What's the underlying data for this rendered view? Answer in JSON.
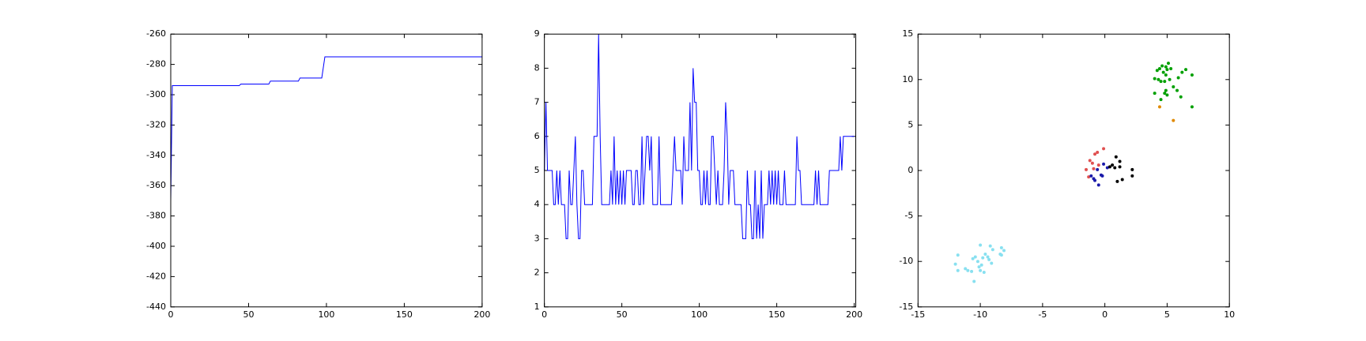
{
  "chart_data": [
    {
      "type": "line",
      "color": "#0000ff",
      "x": [
        0,
        1,
        44,
        45,
        63,
        64,
        82,
        83,
        97,
        99,
        200
      ],
      "values": [
        -370,
        -294,
        -294,
        -293,
        -293,
        -291,
        -291,
        -289,
        -289,
        -275,
        -275
      ],
      "xlim": [
        0,
        200
      ],
      "xticks": [
        0,
        50,
        100,
        150,
        200
      ],
      "ylim": [
        -440,
        -260
      ],
      "yticks": [
        -440,
        -420,
        -400,
        -380,
        -360,
        -340,
        -320,
        -300,
        -280,
        -260
      ]
    },
    {
      "type": "line",
      "color": "#0000ff",
      "x": [
        0,
        1,
        2,
        3,
        4,
        5,
        6,
        7,
        8,
        9,
        10,
        11,
        12,
        13,
        14,
        15,
        16,
        17,
        18,
        19,
        20,
        21,
        22,
        23,
        24,
        25,
        26,
        27,
        28,
        29,
        30,
        31,
        32,
        33,
        34,
        35,
        36,
        37,
        38,
        39,
        40,
        41,
        42,
        43,
        44,
        45,
        46,
        47,
        48,
        49,
        50,
        51,
        52,
        53,
        54,
        55,
        56,
        57,
        58,
        59,
        60,
        61,
        62,
        63,
        64,
        65,
        66,
        67,
        68,
        69,
        70,
        71,
        72,
        73,
        74,
        75,
        76,
        77,
        78,
        79,
        80,
        81,
        82,
        83,
        84,
        85,
        86,
        87,
        88,
        89,
        90,
        91,
        92,
        93,
        94,
        95,
        96,
        97,
        98,
        99,
        100,
        101,
        102,
        103,
        104,
        105,
        106,
        107,
        108,
        109,
        110,
        111,
        112,
        113,
        114,
        115,
        116,
        117,
        118,
        119,
        120,
        121,
        122,
        123,
        124,
        125,
        126,
        127,
        128,
        129,
        130,
        131,
        132,
        133,
        134,
        135,
        136,
        137,
        138,
        139,
        140,
        141,
        142,
        143,
        144,
        145,
        146,
        147,
        148,
        149,
        150,
        151,
        152,
        153,
        154,
        155,
        156,
        157,
        158,
        159,
        160,
        161,
        162,
        163,
        164,
        165,
        166,
        167,
        168,
        169,
        170,
        171,
        172,
        173,
        174,
        175,
        176,
        177,
        178,
        179,
        180,
        181,
        182,
        183,
        184,
        185,
        186,
        187,
        188,
        189,
        190,
        191,
        192,
        193,
        194,
        195,
        196,
        197,
        198,
        199,
        200
      ],
      "values": [
        5,
        7,
        5,
        5,
        5,
        5,
        4,
        4,
        5,
        4,
        5,
        4,
        4,
        4,
        3,
        3,
        5,
        4,
        4,
        5,
        6,
        4,
        3,
        3,
        5,
        5,
        4,
        4,
        4,
        4,
        4,
        4,
        6,
        6,
        6,
        9,
        6,
        4,
        4,
        4,
        4,
        4,
        4,
        5,
        4,
        6,
        4,
        5,
        4,
        5,
        4,
        5,
        4,
        5,
        5,
        5,
        5,
        4,
        4,
        5,
        5,
        4,
        4,
        6,
        4,
        5,
        6,
        6,
        5,
        6,
        4,
        4,
        4,
        4,
        6,
        4,
        4,
        4,
        4,
        4,
        4,
        4,
        4,
        5,
        6,
        5,
        5,
        5,
        5,
        4,
        6,
        5,
        5,
        5,
        7,
        5,
        8,
        7,
        7,
        5,
        5,
        4,
        4,
        5,
        4,
        5,
        4,
        4,
        6,
        6,
        5,
        4,
        5,
        4,
        4,
        4,
        5,
        7,
        6,
        4,
        5,
        5,
        5,
        4,
        4,
        4,
        4,
        4,
        3,
        3,
        3,
        5,
        4,
        4,
        3,
        3,
        5,
        3,
        4,
        3,
        5,
        3,
        4,
        4,
        4,
        5,
        4,
        5,
        4,
        5,
        4,
        5,
        4,
        4,
        4,
        5,
        4,
        4,
        4,
        4,
        4,
        4,
        4,
        6,
        5,
        5,
        4,
        4,
        4,
        4,
        4,
        4,
        4,
        4,
        4,
        5,
        4,
        5,
        4,
        4,
        4,
        4,
        4,
        4,
        5,
        5,
        5,
        5,
        5,
        5,
        5,
        6,
        5,
        6,
        6,
        6,
        6,
        6,
        6,
        6,
        6
      ],
      "xlim": [
        0,
        201
      ],
      "xticks": [
        0,
        50,
        100,
        150,
        200
      ],
      "ylim": [
        1,
        9
      ],
      "yticks": [
        1,
        2,
        3,
        4,
        5,
        6,
        7,
        8,
        9
      ]
    },
    {
      "type": "scatter",
      "series": [
        {
          "color": "#00a000",
          "x": [
            4.0,
            4.3,
            4.5,
            4.8,
            4.2,
            4.6,
            4.9,
            5.1,
            5.3,
            4.7,
            4.9,
            5.0,
            6.2,
            6.5,
            7.0,
            5.9,
            5.5,
            5.8,
            6.1,
            4.0,
            4.5,
            4.9,
            4.8,
            5.0,
            7.0,
            4.4,
            5.2
          ],
          "values": [
            10.1,
            10.0,
            9.8,
            9.8,
            11.0,
            11.5,
            11.4,
            11.8,
            11.2,
            10.8,
            10.5,
            11.1,
            10.8,
            11.1,
            10.5,
            10.2,
            9.2,
            8.8,
            8.1,
            8.5,
            7.8,
            8.8,
            8.5,
            8.3,
            7.0,
            11.2,
            10.0
          ]
        },
        {
          "color": "#e08a00",
          "x": [
            4.4,
            5.5
          ],
          "values": [
            7.0,
            5.5
          ]
        },
        {
          "color": "#e05050",
          "x": [
            -1.5,
            -1.2,
            -1.0,
            -0.8,
            -0.6,
            -0.1,
            -0.5,
            -0.9,
            -1.3
          ],
          "values": [
            0.1,
            1.1,
            0.8,
            1.8,
            2.0,
            2.4,
            0.6,
            0.2,
            -0.7
          ]
        },
        {
          "color": "#1a1aaa",
          "x": [
            -0.9,
            -0.8,
            -0.5,
            -0.3,
            -0.2,
            -0.6,
            0.2,
            -0.1,
            -1.1
          ],
          "values": [
            -0.9,
            -1.1,
            -1.6,
            -0.5,
            -0.6,
            0.1,
            0.3,
            0.7,
            -0.6
          ]
        },
        {
          "color": "#000000",
          "x": [
            0.4,
            0.8,
            0.9,
            1.2,
            0.6,
            1.0,
            1.4,
            2.2,
            2.2,
            1.2
          ],
          "values": [
            0.4,
            0.3,
            1.5,
            1.0,
            0.6,
            -1.2,
            -1.0,
            -0.6,
            0.1,
            0.4
          ]
        },
        {
          "color": "#88e0f0",
          "x": [
            -12,
            -11.8,
            -11.2,
            -11.0,
            -10.6,
            -10.4,
            -10.2,
            -10.0,
            -10.1,
            -9.9,
            -9.7,
            -10.0,
            -10.7,
            -10.5,
            -9.4,
            -9.3,
            -9.2,
            -9.0,
            -9.1,
            -8.4,
            -8.3,
            -8.1,
            -8.3,
            -9.6,
            -9.8,
            -11.8
          ],
          "values": [
            -10.3,
            -9.3,
            -10.8,
            -11.0,
            -9.7,
            -9.5,
            -10.0,
            -8.2,
            -10.6,
            -10.4,
            -11.2,
            -11.0,
            -11.1,
            -12.2,
            -9.5,
            -9.8,
            -8.3,
            -8.7,
            -10.2,
            -9.2,
            -8.5,
            -8.8,
            -9.3,
            -9.2,
            -9.6,
            -11.0
          ]
        }
      ],
      "xlim": [
        -15,
        10
      ],
      "xticks": [
        -15,
        -10,
        -5,
        0,
        5,
        10
      ],
      "ylim": [
        -15,
        15
      ],
      "yticks": [
        -15,
        -10,
        -5,
        0,
        5,
        10,
        15
      ]
    }
  ]
}
